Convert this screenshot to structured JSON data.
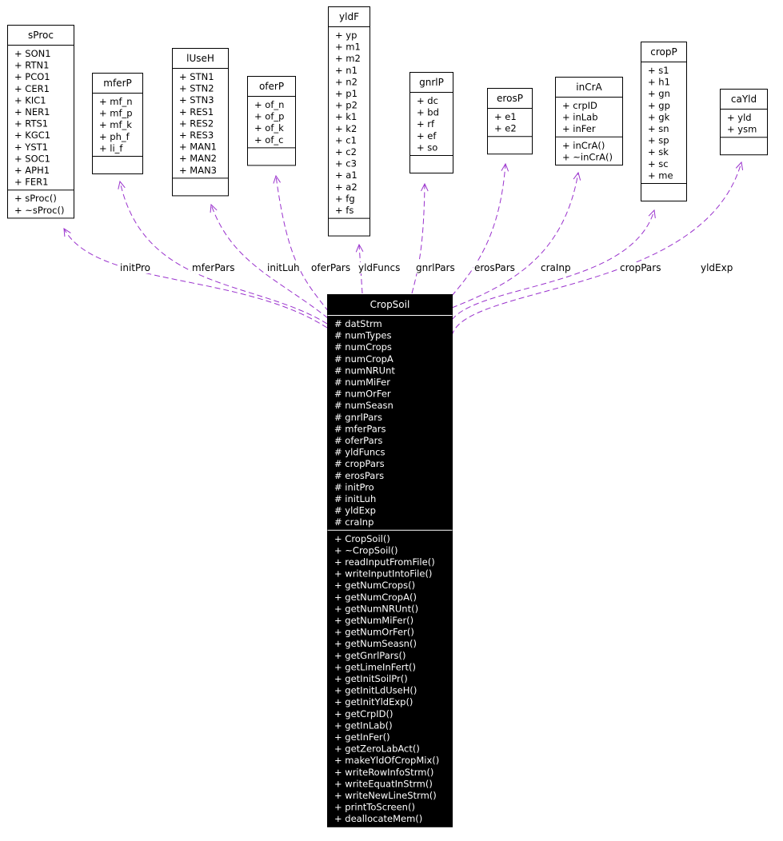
{
  "classes": {
    "sProc": {
      "name": "sProc",
      "attributes": [
        "+ SON1",
        "+ RTN1",
        "+ PCO1",
        "+ CER1",
        "+ KIC1",
        "+ NER1",
        "+ RTS1",
        "+ KGC1",
        "+ YST1",
        "+ SOC1",
        "+ APH1",
        "+ FER1"
      ],
      "methods": [
        "+ sProc()",
        "+ ~sProc()"
      ]
    },
    "mferP": {
      "name": "mferP",
      "attributes": [
        "+ mf_n",
        "+ mf_p",
        "+ mf_k",
        "+ ph_f",
        "+ li_f"
      ],
      "methods": []
    },
    "lUseH": {
      "name": "lUseH",
      "attributes": [
        "+ STN1",
        "+ STN2",
        "+ STN3",
        "+ RES1",
        "+ RES2",
        "+ RES3",
        "+ MAN1",
        "+ MAN2",
        "+ MAN3"
      ],
      "methods": []
    },
    "oferP": {
      "name": "oferP",
      "attributes": [
        "+ of_n",
        "+ of_p",
        "+ of_k",
        "+ of_c"
      ],
      "methods": []
    },
    "yldF": {
      "name": "yldF",
      "attributes": [
        "+ yp",
        "+ m1",
        "+ m2",
        "+ n1",
        "+ n2",
        "+ p1",
        "+ p2",
        "+ k1",
        "+ k2",
        "+ c1",
        "+ c2",
        "+ c3",
        "+ a1",
        "+ a2",
        "+ fg",
        "+ fs"
      ],
      "methods": []
    },
    "gnrlP": {
      "name": "gnrlP",
      "attributes": [
        "+ dc",
        "+ bd",
        "+ rf",
        "+ ef",
        "+ so"
      ],
      "methods": []
    },
    "erosP": {
      "name": "erosP",
      "attributes": [
        "+ e1",
        "+ e2"
      ],
      "methods": []
    },
    "inCrA": {
      "name": "inCrA",
      "attributes": [
        "+ crpID",
        "+ inLab",
        "+ inFer"
      ],
      "methods": [
        "+ inCrA()",
        "+ ~inCrA()"
      ]
    },
    "cropP": {
      "name": "cropP",
      "attributes": [
        "+ s1",
        "+ h1",
        "+ gn",
        "+ gp",
        "+ gk",
        "+ sn",
        "+ sp",
        "+ sk",
        "+ sc",
        "+ me"
      ],
      "methods": []
    },
    "caYld": {
      "name": "caYld",
      "attributes": [
        "+ yld",
        "+ ysm"
      ],
      "methods": []
    },
    "CropSoil": {
      "name": "CropSoil",
      "attributes": [
        "# datStrm",
        "# numTypes",
        "# numCrops",
        "# numCropA",
        "# numNRUnt",
        "# numMiFer",
        "# numOrFer",
        "# numSeasn",
        "# gnrlPars",
        "# mferPars",
        "# oferPars",
        "# yldFuncs",
        "# cropPars",
        "# erosPars",
        "# initPro",
        "# initLuh",
        "# yldExp",
        "# craInp"
      ],
      "methods": [
        "+ CropSoil()",
        "+ ~CropSoil()",
        "+ readInputFromFile()",
        "+ writeInputIntoFile()",
        "+ getNumCrops()",
        "+ getNumCropA()",
        "+ getNumNRUnt()",
        "+ getNumMiFer()",
        "+ getNumOrFer()",
        "+ getNumSeasn()",
        "+ getGnrlPars()",
        "+ getLimeInFert()",
        "+ getInitSoilPr()",
        "+ getInitLdUseH()",
        "+ getInitYldExp()",
        "+ getCrpID()",
        "+ getInLab()",
        "+ getInFer()",
        "+ getZeroLabAct()",
        "+ makeYldOfCropMix()",
        "+ writeRowInfoStrm()",
        "+ writeEquatInStrm()",
        "+ writeNewLineStrm()",
        "+ printToScreen()",
        "+ deallocateMem()"
      ]
    }
  },
  "edges": [
    {
      "from": "sProc",
      "label": "initPro"
    },
    {
      "from": "mferP",
      "label": "mferPars"
    },
    {
      "from": "lUseH",
      "label": "initLuh"
    },
    {
      "from": "oferP",
      "label": "oferPars"
    },
    {
      "from": "yldF",
      "label": "yldFuncs"
    },
    {
      "from": "gnrlP",
      "label": "gnrlPars"
    },
    {
      "from": "erosP",
      "label": "erosPars"
    },
    {
      "from": "inCrA",
      "label": "craInp"
    },
    {
      "from": "cropP",
      "label": "cropPars"
    },
    {
      "from": "caYld",
      "label": "yldExp"
    }
  ],
  "colors": {
    "edge": "#9a32cd",
    "main_fill": "#000000",
    "main_text": "#ffffff"
  }
}
